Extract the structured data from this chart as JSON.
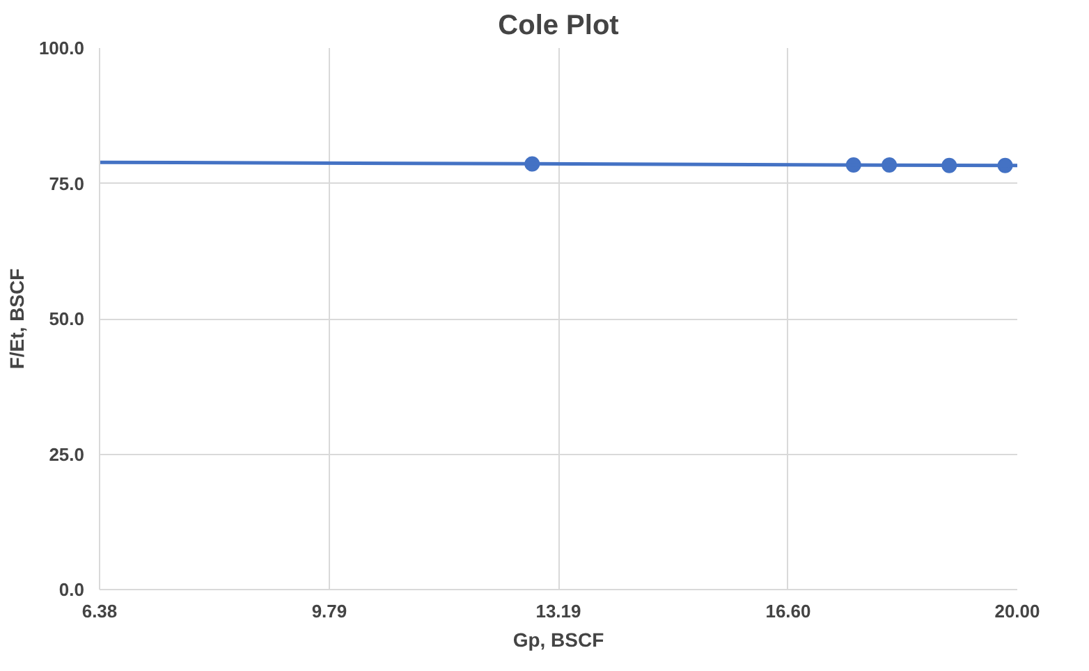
{
  "chart_data": {
    "type": "scatter",
    "title": "Cole Plot",
    "xlabel": "Gp, BSCF",
    "ylabel": "F/Et, BSCF",
    "xlim": [
      6.38,
      20.0
    ],
    "ylim": [
      0,
      100
    ],
    "xticks": [
      6.38,
      9.79,
      13.19,
      {
        "value": 16.6,
        "label": "16.60"
      },
      {
        "value": 20.0,
        "label": "20.00"
      }
    ],
    "yticks": [
      {
        "value": 0,
        "label": "0.0"
      },
      {
        "value": 25,
        "label": "25.0"
      },
      {
        "value": 50,
        "label": "50.0"
      },
      {
        "value": 75,
        "label": "75.0"
      },
      {
        "value": 100,
        "label": "100.0"
      }
    ],
    "grid": true,
    "marker": "circle",
    "series": [
      {
        "color": "#4472c4",
        "x": [
          12.8,
          17.57,
          18.1,
          18.99,
          19.82
        ],
        "values": [
          78.6,
          78.4,
          78.4,
          78.3,
          78.3
        ]
      },
      {
        "type": "line",
        "color": "#4472c4",
        "line_style": "solid",
        "marker": "none",
        "x": [
          6.38,
          20.0
        ],
        "values": [
          78.9,
          78.3
        ]
      }
    ]
  }
}
